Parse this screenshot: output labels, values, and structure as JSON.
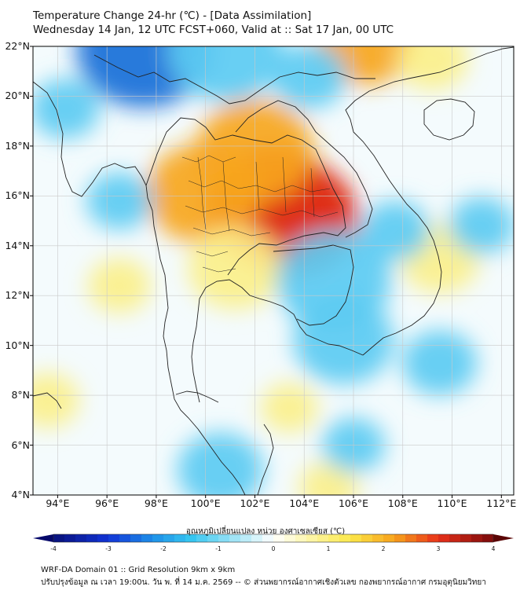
{
  "header": {
    "title_line1": "Temperature Change 24-hr (℃) - [Data Assimilation]",
    "title_line2": "Wednesday 14 Jan, 12 UTC FCST+060, Valid at :: Sat 17 Jan, 00 UTC"
  },
  "map": {
    "variable": "24-hr temperature change",
    "units": "°C",
    "lat_range": [
      4,
      22
    ],
    "lon_range": [
      93,
      112.5
    ],
    "lat_labels": [
      "22°N",
      "20°N",
      "18°N",
      "16°N",
      "14°N",
      "12°N",
      "10°N",
      "8°N",
      "6°N",
      "4°N"
    ],
    "lon_labels": [
      "94°E",
      "96°E",
      "98°E",
      "100°E",
      "102°E",
      "104°E",
      "106°E",
      "108°E",
      "110°E",
      "112°E"
    ],
    "colors": {
      "ocean_light": "#eaf6fb",
      "cold_strong": "#1a6fd8",
      "cold": "#5ccbf2",
      "neutral": "#f4fbfd",
      "warm": "#fbf08a",
      "hot": "#f7a61f",
      "hottest": "#e0301a",
      "coastline": "#222222"
    },
    "anomalies": [
      {
        "lon": 102.8,
        "lat": 15.6,
        "value": 3.3
      },
      {
        "lon": 103.6,
        "lat": 15.1,
        "value": 3.1
      },
      {
        "lon": 99.9,
        "lat": 16.1,
        "value": 2.6
      },
      {
        "lon": 102.0,
        "lat": 17.8,
        "value": 2.7
      },
      {
        "lon": 101.2,
        "lat": 13.1,
        "value": 1.9
      },
      {
        "lon": 106.5,
        "lat": 22.2,
        "value": 2.1
      },
      {
        "lon": 109.2,
        "lat": 21.5,
        "value": 1.1
      },
      {
        "lon": 109.5,
        "lat": 13.5,
        "value": 1.4
      },
      {
        "lon": 96.5,
        "lat": 12.4,
        "value": 0.8
      },
      {
        "lon": 93.6,
        "lat": 7.8,
        "value": 0.8
      },
      {
        "lon": 103.4,
        "lat": 7.5,
        "value": 0.6
      },
      {
        "lon": 105.0,
        "lat": 4.3,
        "value": 0.7
      },
      {
        "lon": 97.5,
        "lat": 21.9,
        "value": -3.3
      },
      {
        "lon": 100.8,
        "lat": 21.8,
        "value": -2.6
      },
      {
        "lon": 104.2,
        "lat": 20.8,
        "value": -1.2
      },
      {
        "lon": 94.3,
        "lat": 19.5,
        "value": -1.0
      },
      {
        "lon": 96.5,
        "lat": 15.8,
        "value": -0.9
      },
      {
        "lon": 105.2,
        "lat": 12.6,
        "value": -2.6
      },
      {
        "lon": 105.6,
        "lat": 10.2,
        "value": -2.1
      },
      {
        "lon": 107.7,
        "lat": 14.6,
        "value": -1.0
      },
      {
        "lon": 100.6,
        "lat": 5.0,
        "value": -1.6
      },
      {
        "lon": 109.5,
        "lat": 9.3,
        "value": -1.2
      },
      {
        "lon": 111.2,
        "lat": 14.8,
        "value": -0.9
      },
      {
        "lon": 106.0,
        "lat": 6.0,
        "value": -0.8
      }
    ]
  },
  "colorbar": {
    "title": "อุณหภูมิเปลี่ยนแปลง หน่วย องศาเซลเซียส (℃)",
    "min": -4,
    "max": 4,
    "ticks": [
      "-4",
      "-3",
      "-2",
      "-1",
      "0",
      "1",
      "2",
      "3",
      "4"
    ]
  },
  "footer": {
    "line1": "WRF-DA Domain 01 :: Grid Resolution 9km x 9km",
    "line2": "ปรับปรุงข้อมูล ณ เวลา 19:00น. วัน พ. ที่ 14 ม.ค. 2569 -- © ส่วนพยากรณ์อากาศเชิงตัวเลข กองพยากรณ์อากาศ กรมอุตุนิยมวิทยา"
  }
}
